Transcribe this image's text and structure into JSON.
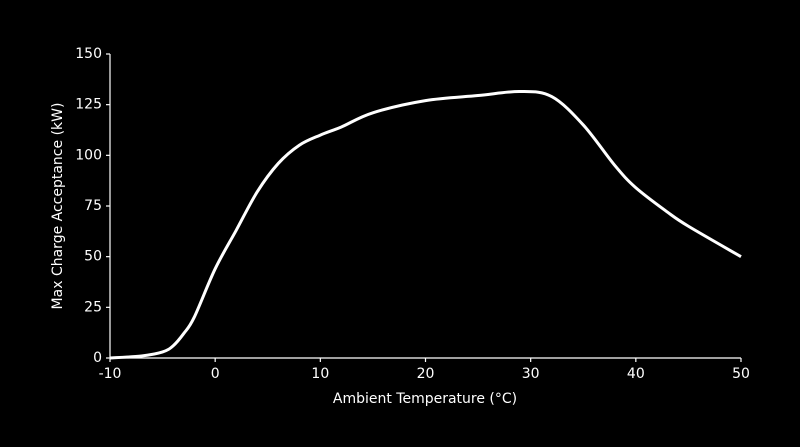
{
  "chart_data": {
    "type": "line",
    "x_label": "Ambient Temperature (°C)",
    "y_label": "Max Charge Acceptance (kW)",
    "x": [
      -10,
      -7,
      -5,
      -4,
      -3,
      -2,
      0,
      2,
      4,
      6,
      8,
      10,
      12,
      15,
      20,
      25,
      29,
      32,
      35,
      38,
      40,
      43,
      45,
      50
    ],
    "series": [
      {
        "color": "#ffffff",
        "values": [
          0,
          1,
          3,
          6,
          12,
          20,
          44,
          63,
          82,
          96,
          105,
          110,
          114,
          121,
          127,
          129.5,
          131.5,
          129,
          115,
          95,
          84,
          72,
          65,
          50
        ]
      }
    ],
    "xlim": [
      -10,
      50
    ],
    "xticks": [
      -10,
      0,
      10,
      20,
      30,
      40,
      50
    ],
    "ylim": [
      0,
      150
    ],
    "yticks": [
      0,
      25,
      50,
      75,
      100,
      125,
      150
    ],
    "grid": false
  }
}
